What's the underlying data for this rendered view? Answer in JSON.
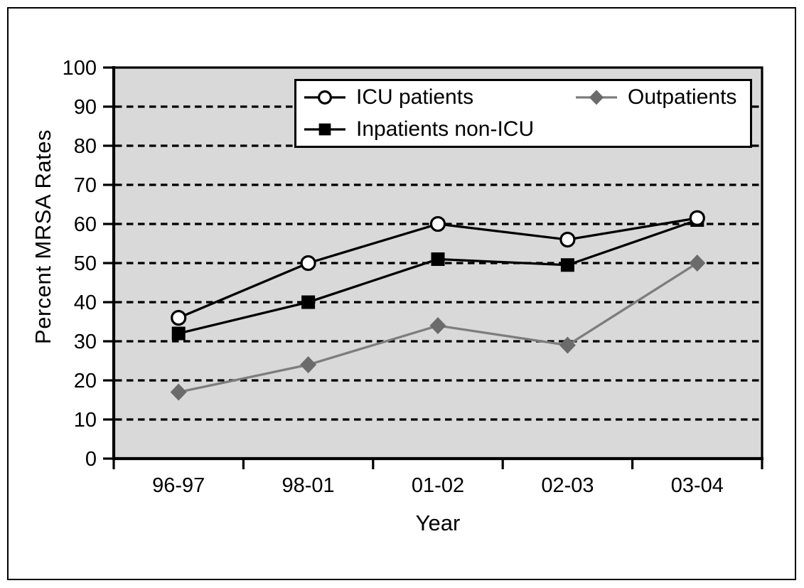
{
  "chart_data": {
    "type": "line",
    "title": "",
    "xlabel": "Year",
    "ylabel": "Percent MRSA Rates",
    "categories": [
      "96-97",
      "98-01",
      "01-02",
      "02-03",
      "03-04"
    ],
    "series": [
      {
        "name": "ICU patients",
        "marker": "circle-open",
        "color": "#000000",
        "marker_color": "#000000",
        "values": [
          36,
          50,
          60,
          56,
          61.5
        ]
      },
      {
        "name": "Inpatients non-ICU",
        "marker": "square-filled",
        "color": "#000000",
        "marker_color": "#000000",
        "values": [
          32,
          40,
          51,
          49.5,
          61
        ]
      },
      {
        "name": "Outpatients",
        "marker": "diamond-filled",
        "color": "#7d7d7d",
        "marker_color": "#6b6b6b",
        "values": [
          17,
          24,
          34,
          29,
          50
        ]
      }
    ],
    "ylim": [
      0,
      100
    ],
    "yticks": [
      0,
      10,
      20,
      30,
      40,
      50,
      60,
      70,
      80,
      90,
      100
    ],
    "grid": "horizontal-dashed",
    "grid_color": "#000000",
    "plot_bg": "#d9d9d9",
    "axis_color": "#000000",
    "legend_position": "top-inside",
    "legend_bg": "#ffffff",
    "legend_border": "#000000"
  }
}
